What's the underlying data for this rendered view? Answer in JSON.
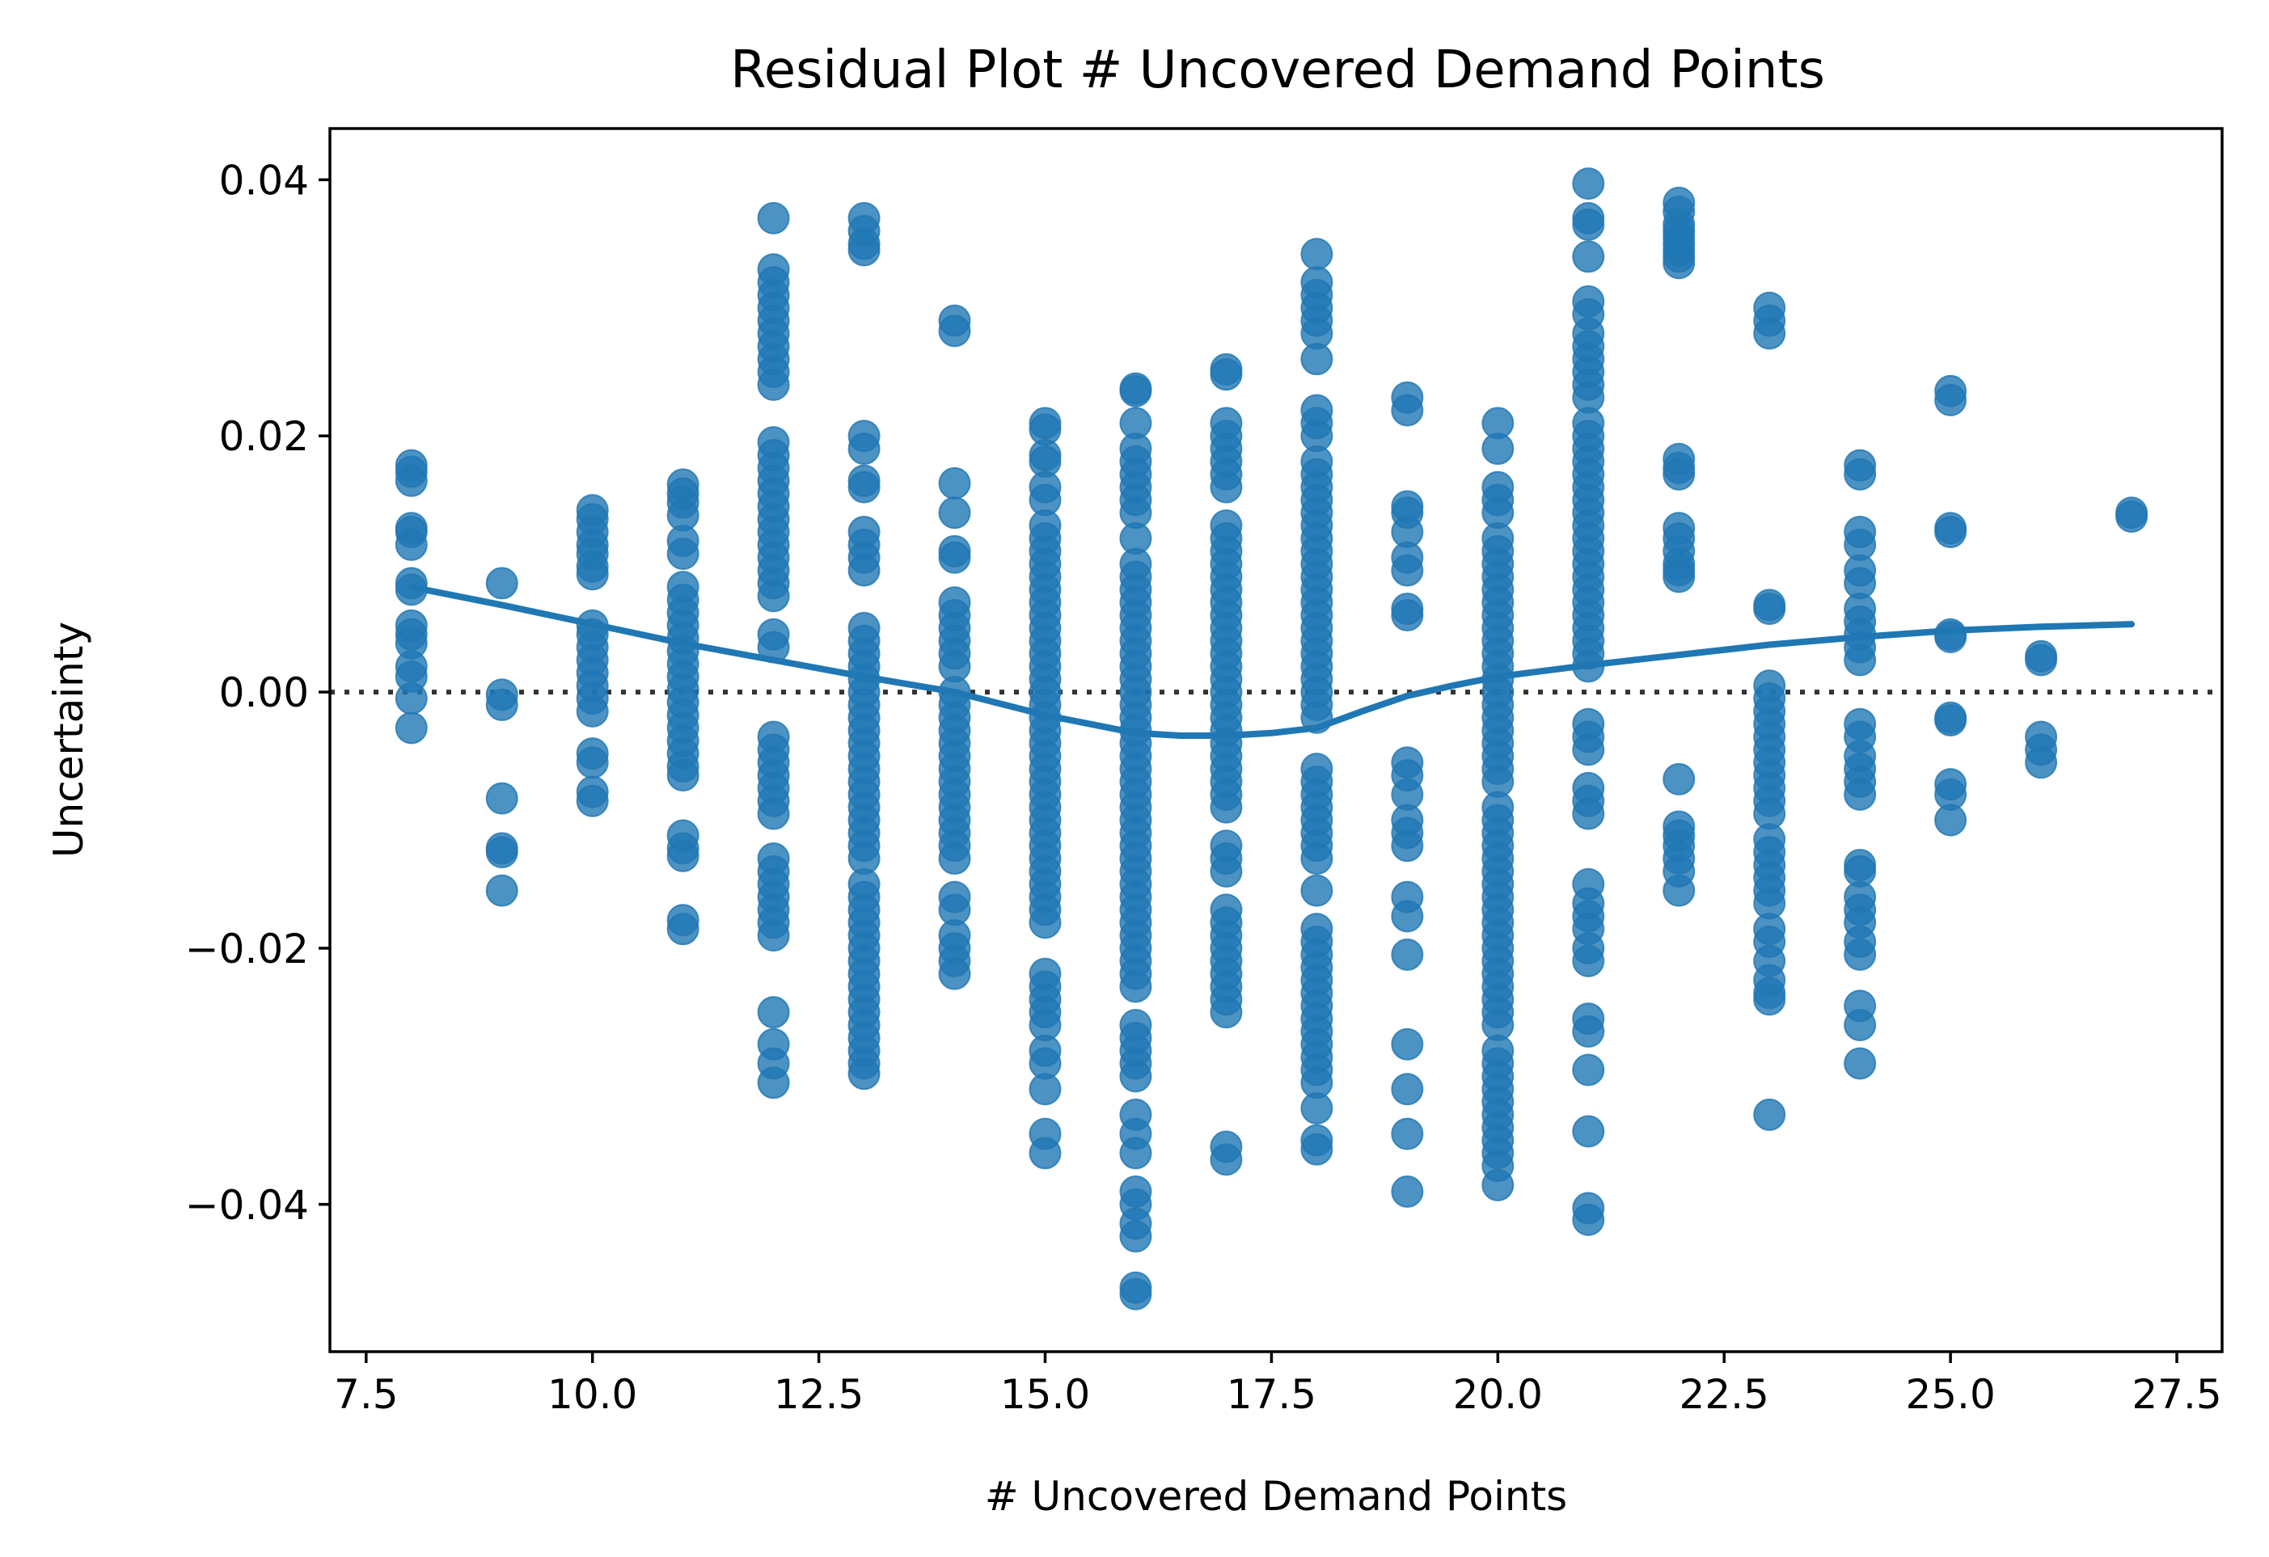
{
  "chart_data": {
    "type": "scatter",
    "title": "Residual Plot # Uncovered Demand Points",
    "xlabel": "# Uncovered Demand Points",
    "ylabel": "Uncertainty",
    "xlim": [
      7.1,
      28.0
    ],
    "ylim": [
      -0.0515,
      0.044
    ],
    "xticks": [
      7.5,
      10.0,
      12.5,
      15.0,
      17.5,
      20.0,
      22.5,
      25.0,
      27.5
    ],
    "xtick_labels": [
      "7.5",
      "10.0",
      "12.5",
      "15.0",
      "17.5",
      "20.0",
      "22.5",
      "25.0",
      "27.5"
    ],
    "yticks": [
      -0.04,
      -0.02,
      0.0,
      0.02,
      0.04
    ],
    "ytick_labels": [
      "−0.04",
      "−0.02",
      "0.00",
      "0.02",
      "0.04"
    ],
    "reference_line": {
      "y": 0.0,
      "style": "dotted"
    },
    "grid": false,
    "legend": "none",
    "marker_color": "#1f77b4",
    "zero_line_color": "#333333",
    "points_by_x": [
      {
        "x": 8,
        "y": [
          0.0177,
          0.0172,
          0.0165,
          0.0128,
          0.0125,
          0.0115,
          0.0085,
          0.008,
          0.0052,
          0.0045,
          0.0038,
          0.002,
          0.0012,
          -0.0005,
          -0.0028
        ]
      },
      {
        "x": 9,
        "y": [
          0.0085,
          -0.0002,
          -0.001,
          -0.0083,
          -0.0122,
          -0.0125,
          -0.0155
        ]
      },
      {
        "x": 10,
        "y": [
          0.0142,
          0.0135,
          0.0125,
          0.0115,
          0.0108,
          0.0098,
          0.0092,
          0.0052,
          0.0045,
          0.0035,
          0.0025,
          0.0015,
          0.0005,
          -0.0005,
          -0.0015,
          -0.0048,
          -0.0055,
          -0.0078,
          -0.0085
        ]
      },
      {
        "x": 11,
        "y": [
          0.0162,
          0.0155,
          0.0148,
          0.0138,
          0.0118,
          0.0108,
          0.0082,
          0.0072,
          0.0062,
          0.0052,
          0.0042,
          0.0032,
          0.0022,
          0.0012,
          0.0002,
          -0.0008,
          -0.0018,
          -0.0028,
          -0.0038,
          -0.0048,
          -0.0058,
          -0.0065,
          -0.0112,
          -0.0122,
          -0.0128,
          -0.0178,
          -0.0185
        ]
      },
      {
        "x": 12,
        "y": [
          0.037,
          0.033,
          0.032,
          0.031,
          0.03,
          0.029,
          0.028,
          0.027,
          0.026,
          0.025,
          0.024,
          0.0195,
          0.0185,
          0.0175,
          0.0165,
          0.0155,
          0.0145,
          0.0135,
          0.0125,
          0.0115,
          0.0105,
          0.0095,
          0.0085,
          0.0075,
          0.0045,
          0.0035,
          -0.0035,
          -0.0045,
          -0.0055,
          -0.0065,
          -0.0075,
          -0.0085,
          -0.0095,
          -0.013,
          -0.014,
          -0.015,
          -0.016,
          -0.017,
          -0.018,
          -0.019,
          -0.025,
          -0.0275,
          -0.029,
          -0.0305
        ]
      },
      {
        "x": 13,
        "y": [
          0.037,
          0.036,
          0.035,
          0.0345,
          0.02,
          0.019,
          0.0165,
          0.016,
          0.0125,
          0.0115,
          0.0105,
          0.0095,
          0.005,
          0.004,
          0.003,
          0.002,
          0.001,
          0.0,
          -0.001,
          -0.002,
          -0.003,
          -0.004,
          -0.005,
          -0.006,
          -0.007,
          -0.008,
          -0.009,
          -0.01,
          -0.011,
          -0.012,
          -0.013,
          -0.015,
          -0.016,
          -0.017,
          -0.018,
          -0.019,
          -0.02,
          -0.021,
          -0.022,
          -0.023,
          -0.024,
          -0.025,
          -0.026,
          -0.027,
          -0.028,
          -0.029,
          -0.0298
        ]
      },
      {
        "x": 14,
        "y": [
          0.029,
          0.0282,
          0.0163,
          0.014,
          0.011,
          0.0105,
          0.007,
          0.006,
          0.005,
          0.004,
          0.003,
          0.002,
          0.0,
          -0.001,
          -0.002,
          -0.003,
          -0.004,
          -0.005,
          -0.006,
          -0.007,
          -0.008,
          -0.009,
          -0.01,
          -0.011,
          -0.012,
          -0.013,
          -0.016,
          -0.017,
          -0.019,
          -0.02,
          -0.021,
          -0.022
        ]
      },
      {
        "x": 15,
        "y": [
          0.021,
          0.0205,
          0.0185,
          0.018,
          0.016,
          0.015,
          0.013,
          0.012,
          0.011,
          0.01,
          0.009,
          0.008,
          0.007,
          0.006,
          0.005,
          0.004,
          0.003,
          0.002,
          0.001,
          0.0,
          -0.001,
          -0.002,
          -0.003,
          -0.004,
          -0.005,
          -0.006,
          -0.007,
          -0.008,
          -0.009,
          -0.01,
          -0.011,
          -0.012,
          -0.013,
          -0.014,
          -0.015,
          -0.016,
          -0.017,
          -0.018,
          -0.022,
          -0.023,
          -0.024,
          -0.025,
          -0.026,
          -0.028,
          -0.029,
          -0.031,
          -0.0345,
          -0.036
        ]
      },
      {
        "x": 16,
        "y": [
          0.0237,
          0.0235,
          0.021,
          0.019,
          0.018,
          0.017,
          0.016,
          0.015,
          0.014,
          0.012,
          0.01,
          0.009,
          0.008,
          0.007,
          0.006,
          0.005,
          0.004,
          0.003,
          0.002,
          0.001,
          0.0,
          -0.001,
          -0.002,
          -0.003,
          -0.004,
          -0.005,
          -0.006,
          -0.007,
          -0.008,
          -0.009,
          -0.01,
          -0.011,
          -0.012,
          -0.013,
          -0.014,
          -0.015,
          -0.016,
          -0.017,
          -0.018,
          -0.019,
          -0.02,
          -0.021,
          -0.022,
          -0.023,
          -0.026,
          -0.027,
          -0.028,
          -0.029,
          -0.03,
          -0.033,
          -0.0345,
          -0.036,
          -0.039,
          -0.04,
          -0.0415,
          -0.0425,
          -0.0465,
          -0.047
        ]
      },
      {
        "x": 17,
        "y": [
          0.0252,
          0.0248,
          0.021,
          0.02,
          0.019,
          0.018,
          0.017,
          0.016,
          0.013,
          0.012,
          0.011,
          0.01,
          0.009,
          0.008,
          0.007,
          0.006,
          0.005,
          0.004,
          0.003,
          0.002,
          0.001,
          0.0,
          -0.001,
          -0.002,
          -0.003,
          -0.004,
          -0.005,
          -0.006,
          -0.007,
          -0.008,
          -0.009,
          -0.012,
          -0.013,
          -0.014,
          -0.017,
          -0.018,
          -0.019,
          -0.02,
          -0.021,
          -0.022,
          -0.023,
          -0.024,
          -0.025,
          -0.0355,
          -0.0365
        ]
      },
      {
        "x": 18,
        "y": [
          0.0342,
          0.032,
          0.031,
          0.03,
          0.029,
          0.028,
          0.026,
          0.022,
          0.021,
          0.02,
          0.018,
          0.017,
          0.016,
          0.015,
          0.014,
          0.013,
          0.012,
          0.011,
          0.01,
          0.009,
          0.008,
          0.007,
          0.006,
          0.005,
          0.004,
          0.003,
          0.002,
          0.001,
          0.0,
          -0.001,
          -0.002,
          -0.006,
          -0.007,
          -0.008,
          -0.009,
          -0.01,
          -0.011,
          -0.012,
          -0.013,
          -0.0155,
          -0.0185,
          -0.0195,
          -0.0205,
          -0.0215,
          -0.0225,
          -0.0235,
          -0.0245,
          -0.0255,
          -0.0265,
          -0.0275,
          -0.0285,
          -0.0295,
          -0.0305,
          -0.0325,
          -0.035,
          -0.0357
        ]
      },
      {
        "x": 19,
        "y": [
          0.023,
          0.022,
          0.0145,
          0.014,
          0.0125,
          0.0105,
          0.0095,
          0.0065,
          0.006,
          -0.0055,
          -0.0065,
          -0.008,
          -0.01,
          -0.011,
          -0.012,
          -0.016,
          -0.0175,
          -0.0205,
          -0.0275,
          -0.031,
          -0.0345,
          -0.039
        ]
      },
      {
        "x": 20,
        "y": [
          0.021,
          0.019,
          0.016,
          0.015,
          0.014,
          0.012,
          0.011,
          0.01,
          0.009,
          0.008,
          0.007,
          0.006,
          0.005,
          0.004,
          0.003,
          0.002,
          0.001,
          0.0,
          -0.001,
          -0.002,
          -0.003,
          -0.004,
          -0.005,
          -0.006,
          -0.007,
          -0.009,
          -0.01,
          -0.011,
          -0.012,
          -0.013,
          -0.014,
          -0.015,
          -0.016,
          -0.017,
          -0.018,
          -0.019,
          -0.02,
          -0.021,
          -0.022,
          -0.023,
          -0.024,
          -0.025,
          -0.026,
          -0.028,
          -0.029,
          -0.03,
          -0.031,
          -0.032,
          -0.033,
          -0.034,
          -0.035,
          -0.036,
          -0.037,
          -0.0385
        ]
      },
      {
        "x": 21,
        "y": [
          0.0397,
          0.037,
          0.0365,
          0.034,
          0.0305,
          0.0295,
          0.028,
          0.027,
          0.026,
          0.025,
          0.024,
          0.023,
          0.021,
          0.02,
          0.019,
          0.018,
          0.017,
          0.016,
          0.015,
          0.014,
          0.013,
          0.012,
          0.011,
          0.01,
          0.009,
          0.008,
          0.007,
          0.006,
          0.005,
          0.004,
          0.003,
          0.002,
          -0.0025,
          -0.0035,
          -0.0045,
          -0.0075,
          -0.0085,
          -0.0095,
          -0.015,
          -0.0165,
          -0.0175,
          -0.0185,
          -0.02,
          -0.021,
          -0.0255,
          -0.0265,
          -0.0295,
          -0.0343,
          -0.0403,
          -0.0412
        ]
      },
      {
        "x": 22,
        "y": [
          0.0382,
          0.0375,
          0.0365,
          0.036,
          0.0355,
          0.035,
          0.0345,
          0.034,
          0.0335,
          0.0182,
          0.0175,
          0.017,
          0.0128,
          0.012,
          0.011,
          0.01,
          0.0095,
          0.009,
          -0.0068,
          -0.0105,
          -0.0112,
          -0.012,
          -0.013,
          -0.014,
          -0.0155
        ]
      },
      {
        "x": 23,
        "y": [
          0.03,
          0.029,
          0.028,
          0.0068,
          0.0065,
          0.0005,
          -0.0005,
          -0.0015,
          -0.0025,
          -0.0035,
          -0.0045,
          -0.0055,
          -0.0065,
          -0.0075,
          -0.0085,
          -0.0095,
          -0.0115,
          -0.0125,
          -0.0135,
          -0.0145,
          -0.0155,
          -0.0165,
          -0.0185,
          -0.0195,
          -0.021,
          -0.0225,
          -0.0235,
          -0.024,
          -0.033
        ]
      },
      {
        "x": 24,
        "y": [
          0.0177,
          0.017,
          0.0125,
          0.0115,
          0.0095,
          0.0085,
          0.0065,
          0.0055,
          0.0045,
          0.0035,
          0.0025,
          -0.0025,
          -0.0035,
          -0.005,
          -0.006,
          -0.007,
          -0.008,
          -0.0135,
          -0.014,
          -0.016,
          -0.017,
          -0.018,
          -0.0195,
          -0.0205,
          -0.0245,
          -0.026,
          -0.029
        ]
      },
      {
        "x": 25,
        "y": [
          0.0235,
          0.0228,
          0.0128,
          0.0125,
          0.0045,
          0.0043,
          -0.002,
          -0.0022,
          -0.0072,
          -0.008,
          -0.01
        ]
      },
      {
        "x": 26,
        "y": [
          0.0028,
          0.0025,
          -0.0035,
          -0.0045,
          -0.0055
        ]
      },
      {
        "x": 27,
        "y": [
          0.014,
          0.0137
        ]
      }
    ],
    "smooth_curve": {
      "x": [
        8,
        9,
        10,
        11,
        12,
        13,
        14,
        15,
        16,
        16.5,
        17,
        17.5,
        18,
        18.5,
        19,
        19.5,
        20,
        21,
        22,
        23,
        24,
        25,
        26,
        27
      ],
      "y": [
        0.0082,
        0.0068,
        0.0053,
        0.0038,
        0.0025,
        0.0012,
        0.0,
        -0.0018,
        -0.0032,
        -0.0034,
        -0.0034,
        -0.0032,
        -0.0028,
        -0.0015,
        -0.0003,
        0.0005,
        0.0012,
        0.0021,
        0.0029,
        0.0037,
        0.0043,
        0.0048,
        0.0051,
        0.0053
      ]
    }
  }
}
